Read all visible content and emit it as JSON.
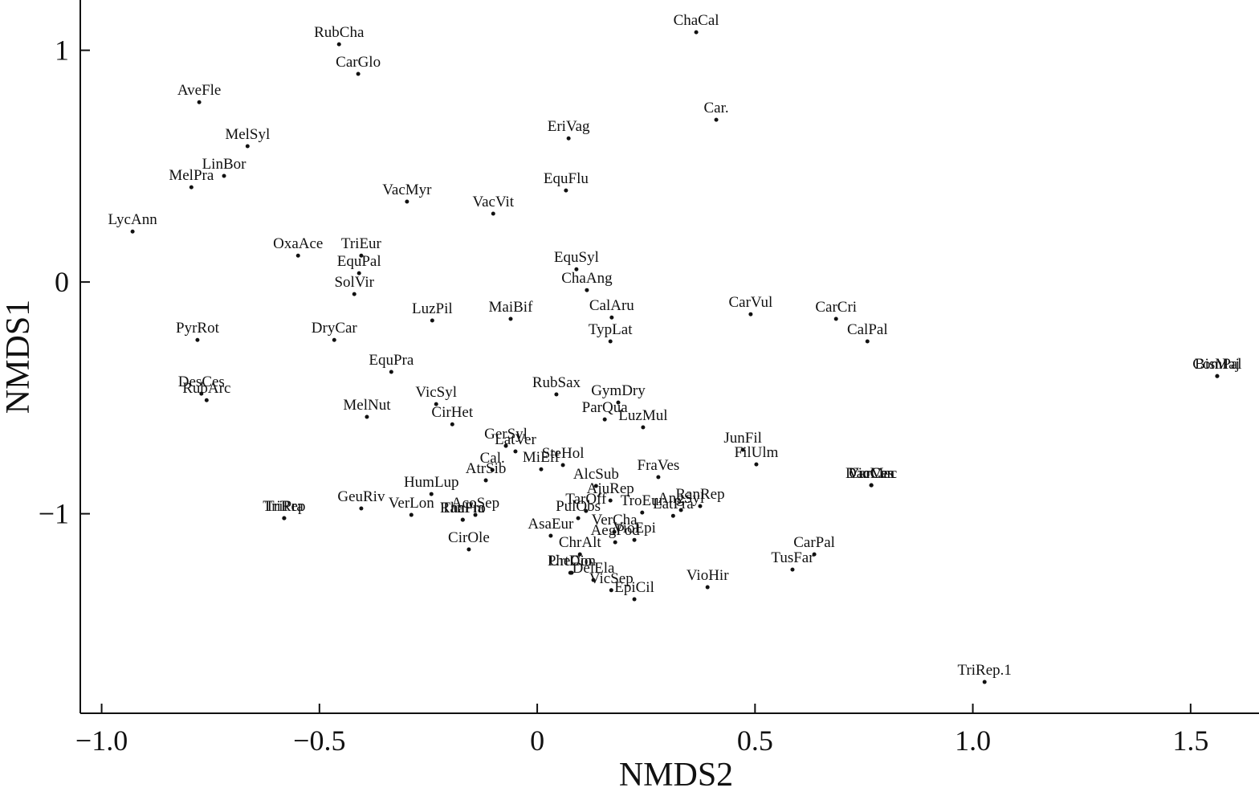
{
  "chart_data": {
    "type": "scatter",
    "xlabel": "NMDS2",
    "ylabel": "NMDS1",
    "xlim": [
      -1.049,
      1.657
    ],
    "ylim": [
      -1.861,
      1.217
    ],
    "xticks": [
      {
        "value": -1.0,
        "label": "−1.0"
      },
      {
        "value": -0.5,
        "label": "−0.5"
      },
      0,
      0.5,
      {
        "value": 1.0,
        "label": "1.0"
      },
      1.5
    ],
    "yticks": [
      1,
      0,
      {
        "value": -1,
        "label": "−1"
      }
    ],
    "color": "#111111",
    "labels": [
      "RubCha",
      "CarGlo",
      "AveFle",
      "MelSyl",
      "LinBor",
      "MelPra",
      "LycAnn",
      "ChaCal",
      "Car.",
      "EriVag",
      "EquFlu",
      "VacMyr",
      "VacVit",
      "OxaAce",
      "TriEur",
      "EquPal",
      "SolVir",
      "EquSyl",
      "ChaAng",
      "CalAru",
      "TypLat",
      "MaiBif",
      "LuzPil",
      "CarVul",
      "CarCri",
      "CalPal",
      "PyrRot",
      "DryCar",
      "EquPra",
      "ComPal",
      "BisMaj",
      "DesCes",
      "RubArc",
      "MelNut",
      "VicSyl",
      "CirHet",
      "RubSax",
      "GymDry",
      "ParQua",
      "LuzMul",
      "GerSyl",
      "LatVer",
      "JunFil",
      "FilUlm",
      "DacMac",
      "CarCes",
      "VioCan",
      "Cal.",
      "SteHol",
      "MiEff",
      "AtrSib",
      "HumLup",
      "VerLon",
      "GeuRiv",
      "TriRep",
      "TriPra",
      "AcoSep",
      "ThaFla",
      "RanPro",
      "AlcSub",
      "FraVes",
      "AngSyl",
      "RanRep",
      "AjuRep",
      "TarOff",
      "PulObs",
      "VerCha",
      "TroEur",
      "LatPra",
      "VioEpi",
      "AsaEur",
      "CirOle",
      "ChrAlt",
      "AegPod",
      "PheCon",
      "UrtDio",
      "DelEla",
      "VicSep",
      "EpiCil",
      "VioHir",
      "TusFar",
      "CarPal",
      "TriRep.1"
    ],
    "x": [
      -0.455,
      -0.411,
      -0.776,
      -0.665,
      -0.719,
      -0.794,
      -0.929,
      0.365,
      0.411,
      0.072,
      0.066,
      -0.299,
      -0.101,
      -0.549,
      -0.404,
      -0.409,
      -0.42,
      0.09,
      0.114,
      0.171,
      0.168,
      -0.061,
      -0.241,
      0.49,
      0.686,
      0.758,
      -0.78,
      -0.466,
      -0.335,
      1.561,
      1.561,
      -0.771,
      -0.759,
      -0.391,
      -0.232,
      -0.195,
      0.044,
      0.186,
      0.155,
      0.243,
      -0.072,
      -0.05,
      0.472,
      0.503,
      0.767,
      0.767,
      0.767,
      -0.103,
      0.059,
      0.009,
      -0.118,
      -0.243,
      -0.289,
      -0.404,
      -0.581,
      -0.581,
      -0.142,
      -0.171,
      -0.171,
      0.135,
      0.278,
      0.33,
      0.374,
      0.168,
      0.112,
      0.094,
      0.177,
      0.241,
      0.312,
      0.223,
      0.031,
      -0.157,
      0.098,
      0.179,
      0.079,
      0.076,
      0.129,
      0.17,
      0.223,
      0.391,
      0.586,
      0.636,
      1.027
    ],
    "y": [
      1.026,
      0.898,
      0.776,
      0.586,
      0.458,
      0.409,
      0.218,
      1.078,
      0.7,
      0.62,
      0.395,
      0.347,
      0.295,
      0.114,
      0.114,
      0.038,
      -0.052,
      0.055,
      -0.035,
      -0.153,
      -0.256,
      -0.159,
      -0.166,
      -0.139,
      -0.159,
      -0.256,
      -0.25,
      -0.25,
      -0.388,
      -0.406,
      -0.406,
      -0.482,
      -0.51,
      -0.582,
      -0.527,
      -0.614,
      -0.485,
      -0.52,
      -0.593,
      -0.627,
      -0.707,
      -0.731,
      -0.724,
      -0.787,
      -0.877,
      -0.877,
      -0.877,
      -0.811,
      -0.79,
      -0.808,
      -0.856,
      -0.915,
      -1.005,
      -0.977,
      -1.019,
      -1.019,
      -1.005,
      -1.026,
      -1.026,
      -0.88,
      -0.842,
      -0.984,
      -0.967,
      -0.943,
      -0.988,
      -1.019,
      -1.078,
      -0.995,
      -1.009,
      -1.113,
      -1.095,
      -1.154,
      -1.175,
      -1.123,
      -1.255,
      -1.255,
      -1.286,
      -1.33,
      -1.369,
      -1.317,
      -1.241,
      -1.175,
      -1.726
    ]
  }
}
